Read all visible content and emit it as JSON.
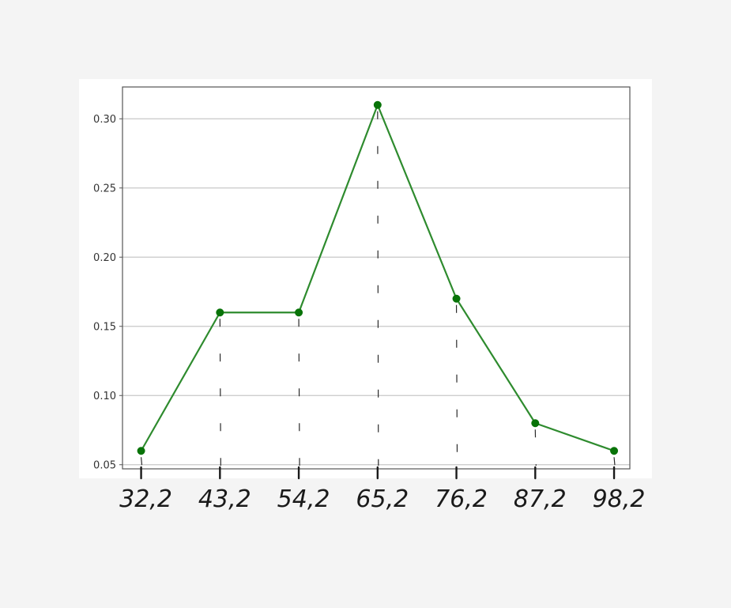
{
  "chart_data": {
    "type": "line",
    "title": "",
    "xlabel": "",
    "ylabel": "",
    "x": [
      32.2,
      43.2,
      54.2,
      65.2,
      76.2,
      87.2,
      98.2
    ],
    "x_tick_labels": [
      "32,2",
      "43,2",
      "54,2",
      "65,2",
      "76,2",
      "87,2",
      "98,2"
    ],
    "series": [
      {
        "values": [
          0.06,
          0.16,
          0.16,
          0.31,
          0.17,
          0.08,
          0.06
        ],
        "color": "#2e8b2e",
        "marker_color": "#087308"
      }
    ],
    "y_ticks": [
      0.05,
      0.1,
      0.15,
      0.2,
      0.25,
      0.3
    ],
    "y_tick_labels": [
      "0.05",
      "0.10",
      "0.15",
      "0.20",
      "0.25",
      "0.30"
    ],
    "xlim": [
      29.6,
      100.4
    ],
    "ylim": [
      0.047,
      0.323
    ],
    "grid": "horizontal",
    "legend": "none",
    "annotations": "hand-drawn dashed drop lines from each point to the x-axis"
  }
}
